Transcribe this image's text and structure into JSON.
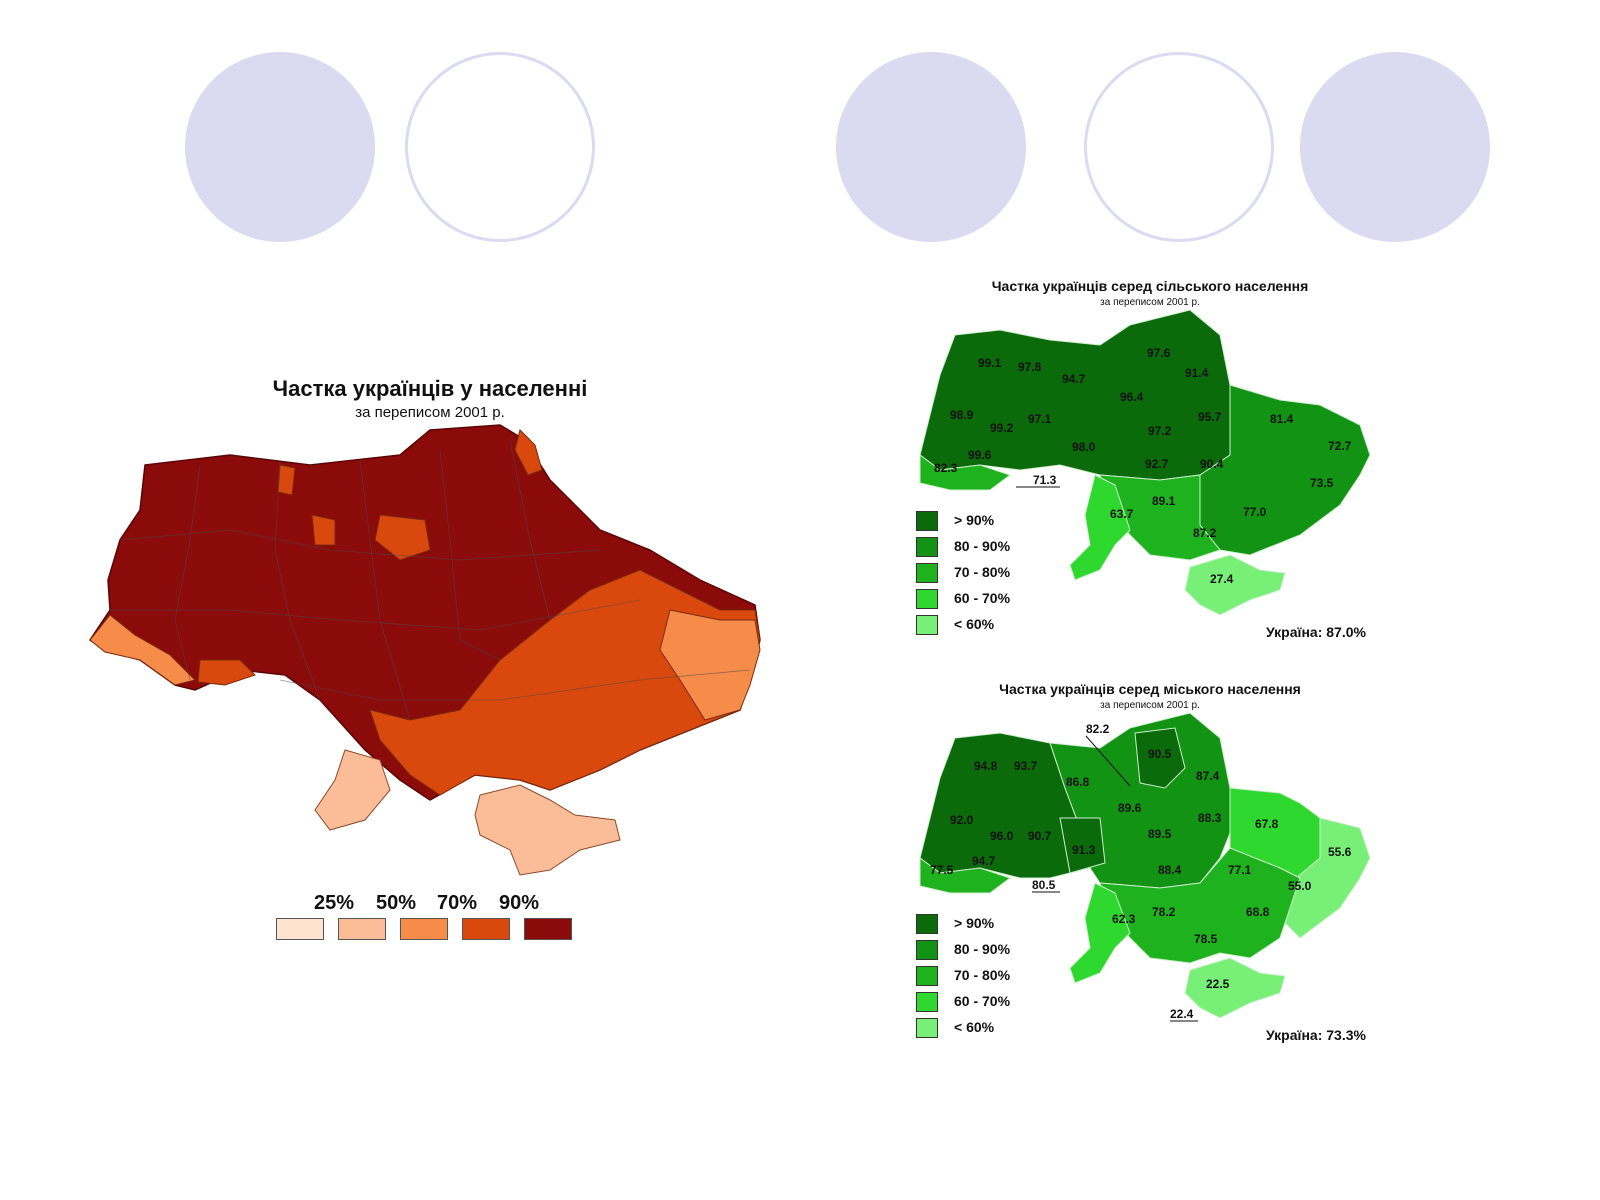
{
  "decorations": {
    "circles": [
      "filled",
      "ring",
      "filled",
      "ring",
      "filled"
    ]
  },
  "map_total": {
    "title": "Частка українців у населенні",
    "subtitle": "за переписом 2001 р.",
    "legend": {
      "labels": [
        "25%",
        "50%",
        "70%",
        "90%"
      ],
      "colors": [
        "#fde3d0",
        "#fbbd98",
        "#f68c4a",
        "#d9490e",
        "#8b0a0a"
      ]
    }
  },
  "map_rural": {
    "title": "Частка українців серед сільського населення",
    "subtitle": "за переписом 2001 р.",
    "total": "Україна: 87.0%",
    "values": [
      "99.1",
      "97.8",
      "94.7",
      "97.6",
      "91.4",
      "96.4",
      "98.9",
      "99.2",
      "97.1",
      "95.7",
      "81.4",
      "97.2",
      "72.7",
      "99.6",
      "98.0",
      "92.7",
      "90.4",
      "82.3",
      "71.3",
      "73.5",
      "89.1",
      "63.7",
      "77.0",
      "87.2",
      "27.4"
    ]
  },
  "map_urban": {
    "title": "Частка українців серед міського населення",
    "subtitle": "за переписом 2001 р.",
    "total": "Україна: 73.3%",
    "values": [
      "82.2",
      "90.5",
      "94.8",
      "93.7",
      "86.8",
      "87.4",
      "89.6",
      "88.3",
      "92.0",
      "96.0",
      "90.7",
      "89.5",
      "67.8",
      "91.3",
      "55.6",
      "77.5",
      "94.7",
      "88.4",
      "77.1",
      "55.0",
      "80.5",
      "62.3",
      "78.2",
      "68.8",
      "78.5",
      "22.5",
      "22.4"
    ]
  },
  "green_legend": {
    "labels": [
      "> 90%",
      "80 - 90%",
      "70 - 80%",
      "60 - 70%",
      "< 60%"
    ],
    "colors": [
      "#0b6b0b",
      "#139313",
      "#1fb21f",
      "#2fd82f",
      "#78f078"
    ]
  }
}
